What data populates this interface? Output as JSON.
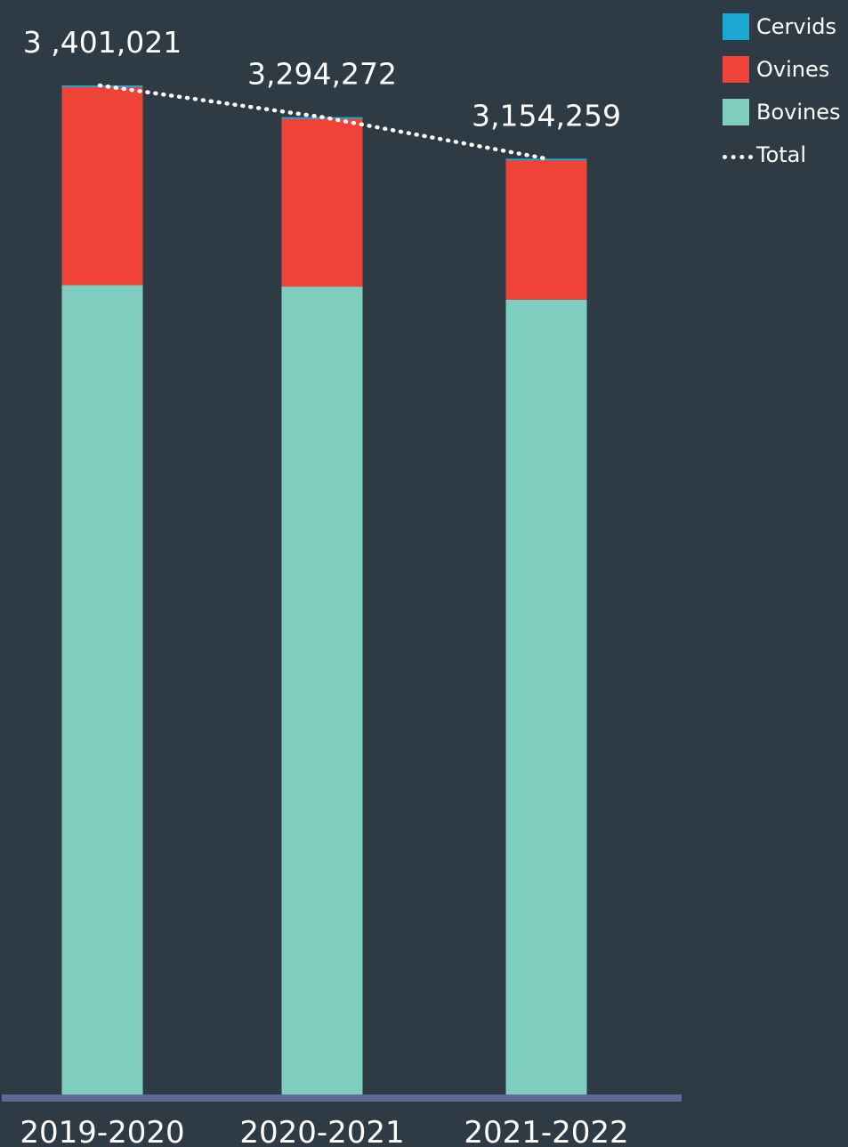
{
  "chart_data": {
    "type": "bar",
    "stacked": true,
    "categories": [
      "2019-2020",
      "2020-2021",
      "2021-2022"
    ],
    "series": [
      {
        "name": "Bovines",
        "color": "#7ecdbf",
        "values": [
          2728000,
          2723000,
          2679000
        ]
      },
      {
        "name": "Ovines",
        "color": "#ef4338",
        "values": [
          670000,
          568000,
          473000
        ]
      },
      {
        "name": "Cervids",
        "color": "#1aa7d4",
        "values": [
          3021,
          3272,
          2259
        ]
      }
    ],
    "totals": {
      "name": "Total",
      "values": [
        3401021,
        3294272,
        3154259
      ],
      "labels": [
        "3 ,401,021",
        "3,294,272",
        "3,154,259"
      ],
      "line_style": "dotted",
      "color": "#ffffff"
    },
    "ylim": [
      0,
      3401021
    ],
    "grid": false,
    "legend_position": "top-right",
    "axis_color": "#5c6b96",
    "background": "#2f3b44",
    "legend": [
      {
        "label": "Cervids",
        "kind": "swatch",
        "color": "#1aa7d4"
      },
      {
        "label": "Ovines",
        "kind": "swatch",
        "color": "#ef4338"
      },
      {
        "label": "Bovines",
        "kind": "swatch",
        "color": "#7ecdbf"
      },
      {
        "label": "Total",
        "kind": "dotted-line",
        "color": "#ffffff"
      }
    ]
  }
}
